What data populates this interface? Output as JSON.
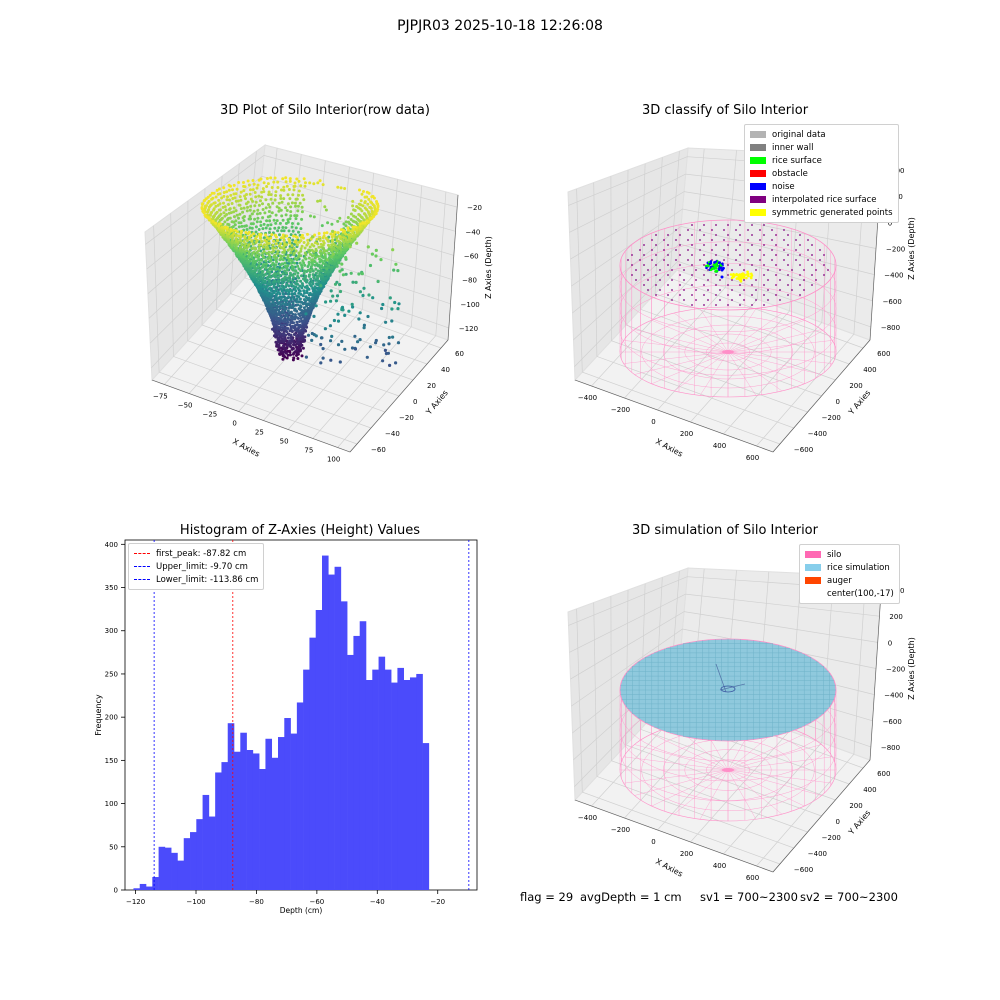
{
  "suptitle": "PJPJR03 2025-10-18 12:26:08",
  "plot_titles": {
    "p1": "3D Plot of Silo Interior(row data)",
    "p2": "3D classify of Silo Interior",
    "p3": "Histogram of Z-Axies (Height) Values",
    "p4": "3D simulation of Silo Interior"
  },
  "legend2": [
    {
      "label": "original data",
      "color": "#b3b3b3"
    },
    {
      "label": "inner wall",
      "color": "#808080"
    },
    {
      "label": "rice surface",
      "color": "#00ff00"
    },
    {
      "label": "obstacle",
      "color": "#ff0000"
    },
    {
      "label": "noise",
      "color": "#0000ff"
    },
    {
      "label": "interpolated rice surface",
      "color": "#800080"
    },
    {
      "label": "symmetric generated points",
      "color": "#ffff00"
    }
  ],
  "legend3": [
    {
      "label": "first_peak: -87.82 cm",
      "color": "#ff0000"
    },
    {
      "label": "Upper_limit: -9.70 cm",
      "color": "#0000ff"
    },
    {
      "label": "Lower_limit: -113.86 cm",
      "color": "#0000ff"
    }
  ],
  "legend4": [
    {
      "label": "silo",
      "color": "#ff69b4"
    },
    {
      "label": "rice simulation",
      "color": "#87ceeb"
    },
    {
      "label": "auger",
      "color": "#ff4500"
    },
    {
      "label": "center(100,-17)",
      "color": ""
    }
  ],
  "status": {
    "flag": "flag = 29",
    "avg": "avgDepth = 1 cm",
    "sv1": "sv1 = 700~2300",
    "sv2": "sv2 = 700~2300"
  },
  "axes": {
    "p1": {
      "xlabel": "X Axies",
      "ylabel": "Y Axies",
      "zlabel": "Z Axies (Depth)",
      "xticks": [
        "−75",
        "−50",
        "−25",
        "0",
        "25",
        "50",
        "75",
        "100"
      ],
      "yticks": [
        "−60",
        "−40",
        "−20",
        "0",
        "20",
        "40",
        "60"
      ],
      "zticks": [
        "−120",
        "−100",
        "−80",
        "−60",
        "−40",
        "−20"
      ]
    },
    "p2": {
      "xlabel": "X Axies",
      "ylabel": "Y Axies",
      "zlabel": "Z Axies (Depth)",
      "xticks": [
        "−400",
        "−200",
        "0",
        "200",
        "400",
        "600"
      ],
      "yticks": [
        "−600",
        "−400",
        "−200",
        "0",
        "200",
        "400",
        "600"
      ],
      "zticks": [
        "−800",
        "−600",
        "−400",
        "−200",
        "0",
        "200",
        "400"
      ]
    },
    "p4": {
      "xlabel": "X Axies",
      "ylabel": "Y Axies",
      "zlabel": "Z Axies (Depth)",
      "xticks": [
        "−400",
        "−200",
        "0",
        "200",
        "400",
        "600"
      ],
      "yticks": [
        "−600",
        "−400",
        "−200",
        "0",
        "200",
        "400",
        "600"
      ],
      "zticks": [
        "−800",
        "−600",
        "−400",
        "−200",
        "0",
        "200",
        "400"
      ]
    }
  },
  "chart_data": [
    {
      "type": "scatter",
      "title": "3D Plot of Silo Interior(row data)",
      "xlabel": "X Axies",
      "ylabel": "Y Axies",
      "zlabel": "Z Axies (Depth)",
      "xlim": [
        -80,
        105
      ],
      "ylim": [
        -65,
        65
      ],
      "zlim": [
        -130,
        -10
      ],
      "colormap": "viridis"
    },
    {
      "type": "scatter",
      "title": "3D classify of Silo Interior",
      "xlabel": "X Axies",
      "ylabel": "Y Axies",
      "zlabel": "Z Axies (Depth)",
      "xlim": [
        -500,
        700
      ],
      "ylim": [
        -700,
        700
      ],
      "zlim": [
        -900,
        450
      ]
    },
    {
      "type": "bar",
      "title": "Histogram of Z-Axies (Height) Values",
      "xlabel": "Depth (cm)",
      "ylabel": "Frequency",
      "xlim": [
        -123.5,
        -7
      ],
      "ylim": [
        0,
        405
      ],
      "xticks": [
        -120,
        -100,
        -80,
        -60,
        -40,
        -20
      ],
      "yticks": [
        0,
        50,
        100,
        150,
        200,
        250,
        300,
        350,
        400
      ],
      "xtick_labels": [
        "−120",
        "−100",
        "−80",
        "−60",
        "−40",
        "−20"
      ],
      "bin_start": -120.7,
      "bin_width": 2.08,
      "values": [
        2,
        7,
        4,
        15,
        50,
        49,
        43,
        34,
        60,
        67,
        82,
        110,
        85,
        136,
        148,
        193,
        160,
        182,
        162,
        158,
        140,
        175,
        153,
        177,
        199,
        181,
        217,
        255,
        292,
        324,
        387,
        365,
        374,
        334,
        272,
        294,
        311,
        243,
        255,
        270,
        255,
        240,
        257,
        243,
        246,
        250,
        170
      ],
      "lines": [
        {
          "name": "first_peak",
          "x": -87.82,
          "color": "#ff0000"
        },
        {
          "name": "Upper_limit",
          "x": -9.7,
          "color": "#0000ff"
        },
        {
          "name": "Lower_limit",
          "x": -113.86,
          "color": "#0000ff"
        }
      ],
      "bar_color": "#4b4bfb"
    },
    {
      "type": "scatter",
      "title": "3D simulation of Silo Interior",
      "xlabel": "X Axies",
      "ylabel": "Y Axies",
      "zlabel": "Z Axies (Depth)",
      "xlim": [
        -500,
        700
      ],
      "ylim": [
        -700,
        700
      ],
      "zlim": [
        -900,
        450
      ]
    }
  ]
}
